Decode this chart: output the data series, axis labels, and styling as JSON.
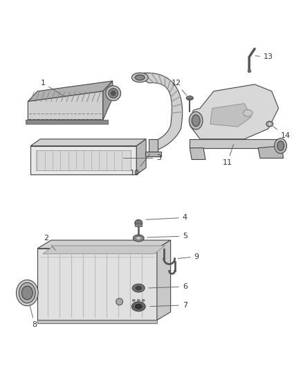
{
  "bg_color": "#ffffff",
  "fig_width": 4.38,
  "fig_height": 5.33,
  "ec": "#444444",
  "lw": 0.8,
  "label_fs": 8,
  "label_color": "#333333",
  "line_color": "#666666"
}
